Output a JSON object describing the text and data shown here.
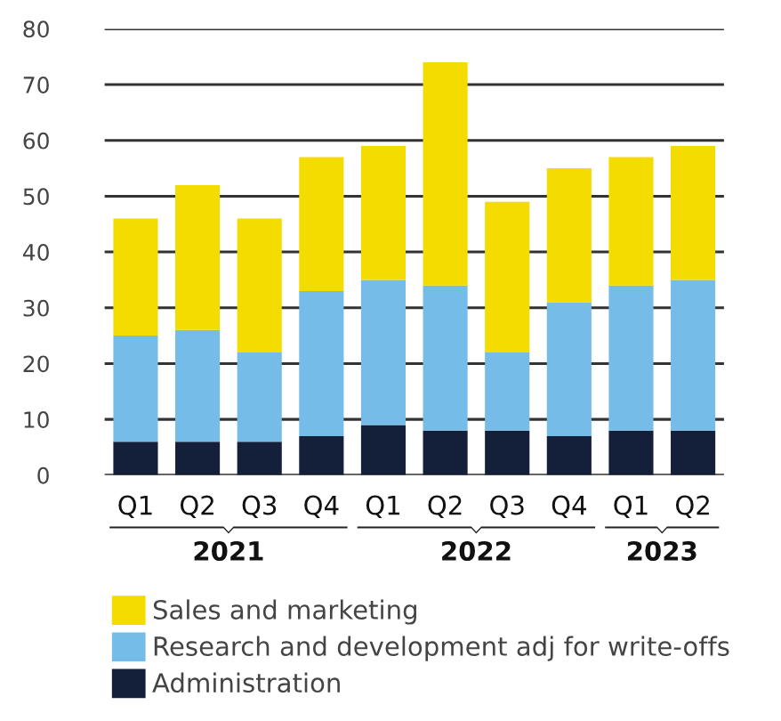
{
  "chart_data": {
    "type": "bar",
    "stacked": true,
    "categories": [
      "Q1",
      "Q2",
      "Q3",
      "Q4",
      "Q1",
      "Q2",
      "Q3",
      "Q4",
      "Q1",
      "Q2"
    ],
    "annotations": [
      "2021",
      "2022",
      "2023"
    ],
    "series": [
      {
        "name": "Administration",
        "color": "#14203a",
        "values": [
          6,
          6,
          6,
          7,
          9,
          8,
          8,
          7,
          8,
          8
        ]
      },
      {
        "name": "Research and development adj for write-offs",
        "color": "#75bde8",
        "values": [
          19,
          20,
          16,
          26,
          26,
          26,
          14,
          24,
          26,
          27
        ]
      },
      {
        "name": "Sales and marketing",
        "color": "#f5dc00",
        "values": [
          21,
          26,
          24,
          24,
          24,
          40,
          27,
          24,
          23,
          24
        ]
      }
    ],
    "ylim": [
      0,
      80
    ],
    "yticks": [
      0,
      10,
      20,
      30,
      40,
      50,
      60,
      70,
      80
    ],
    "grid": "y",
    "legend": "bottom left"
  }
}
